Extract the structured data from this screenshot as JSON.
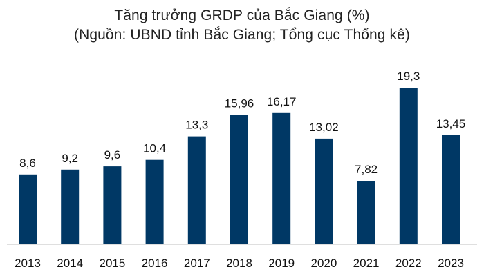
{
  "chart_data": {
    "type": "bar",
    "title": "Tăng trưởng GRDP của Bắc Giang (%)",
    "subtitle": "(Nguồn: UBND tỉnh Bắc Giang; Tổng cục Thống kê)",
    "xlabel": "",
    "ylabel": "",
    "categories": [
      "2013",
      "2014",
      "2015",
      "2016",
      "2017",
      "2018",
      "2019",
      "2020",
      "2021",
      "2022",
      "2023"
    ],
    "values": [
      8.6,
      9.2,
      9.6,
      10.4,
      13.3,
      15.96,
      16.17,
      13.02,
      7.82,
      19.3,
      13.45
    ],
    "value_labels": [
      "8,6",
      "9,2",
      "9,6",
      "10,4",
      "13,3",
      "15,96",
      "16,17",
      "13,02",
      "7,82",
      "19,3",
      "13,45"
    ],
    "ylim": [
      0,
      19.3
    ],
    "grid": false,
    "legend": "none",
    "bar_color": "#003865",
    "axis_color": "#bfbfbf"
  }
}
